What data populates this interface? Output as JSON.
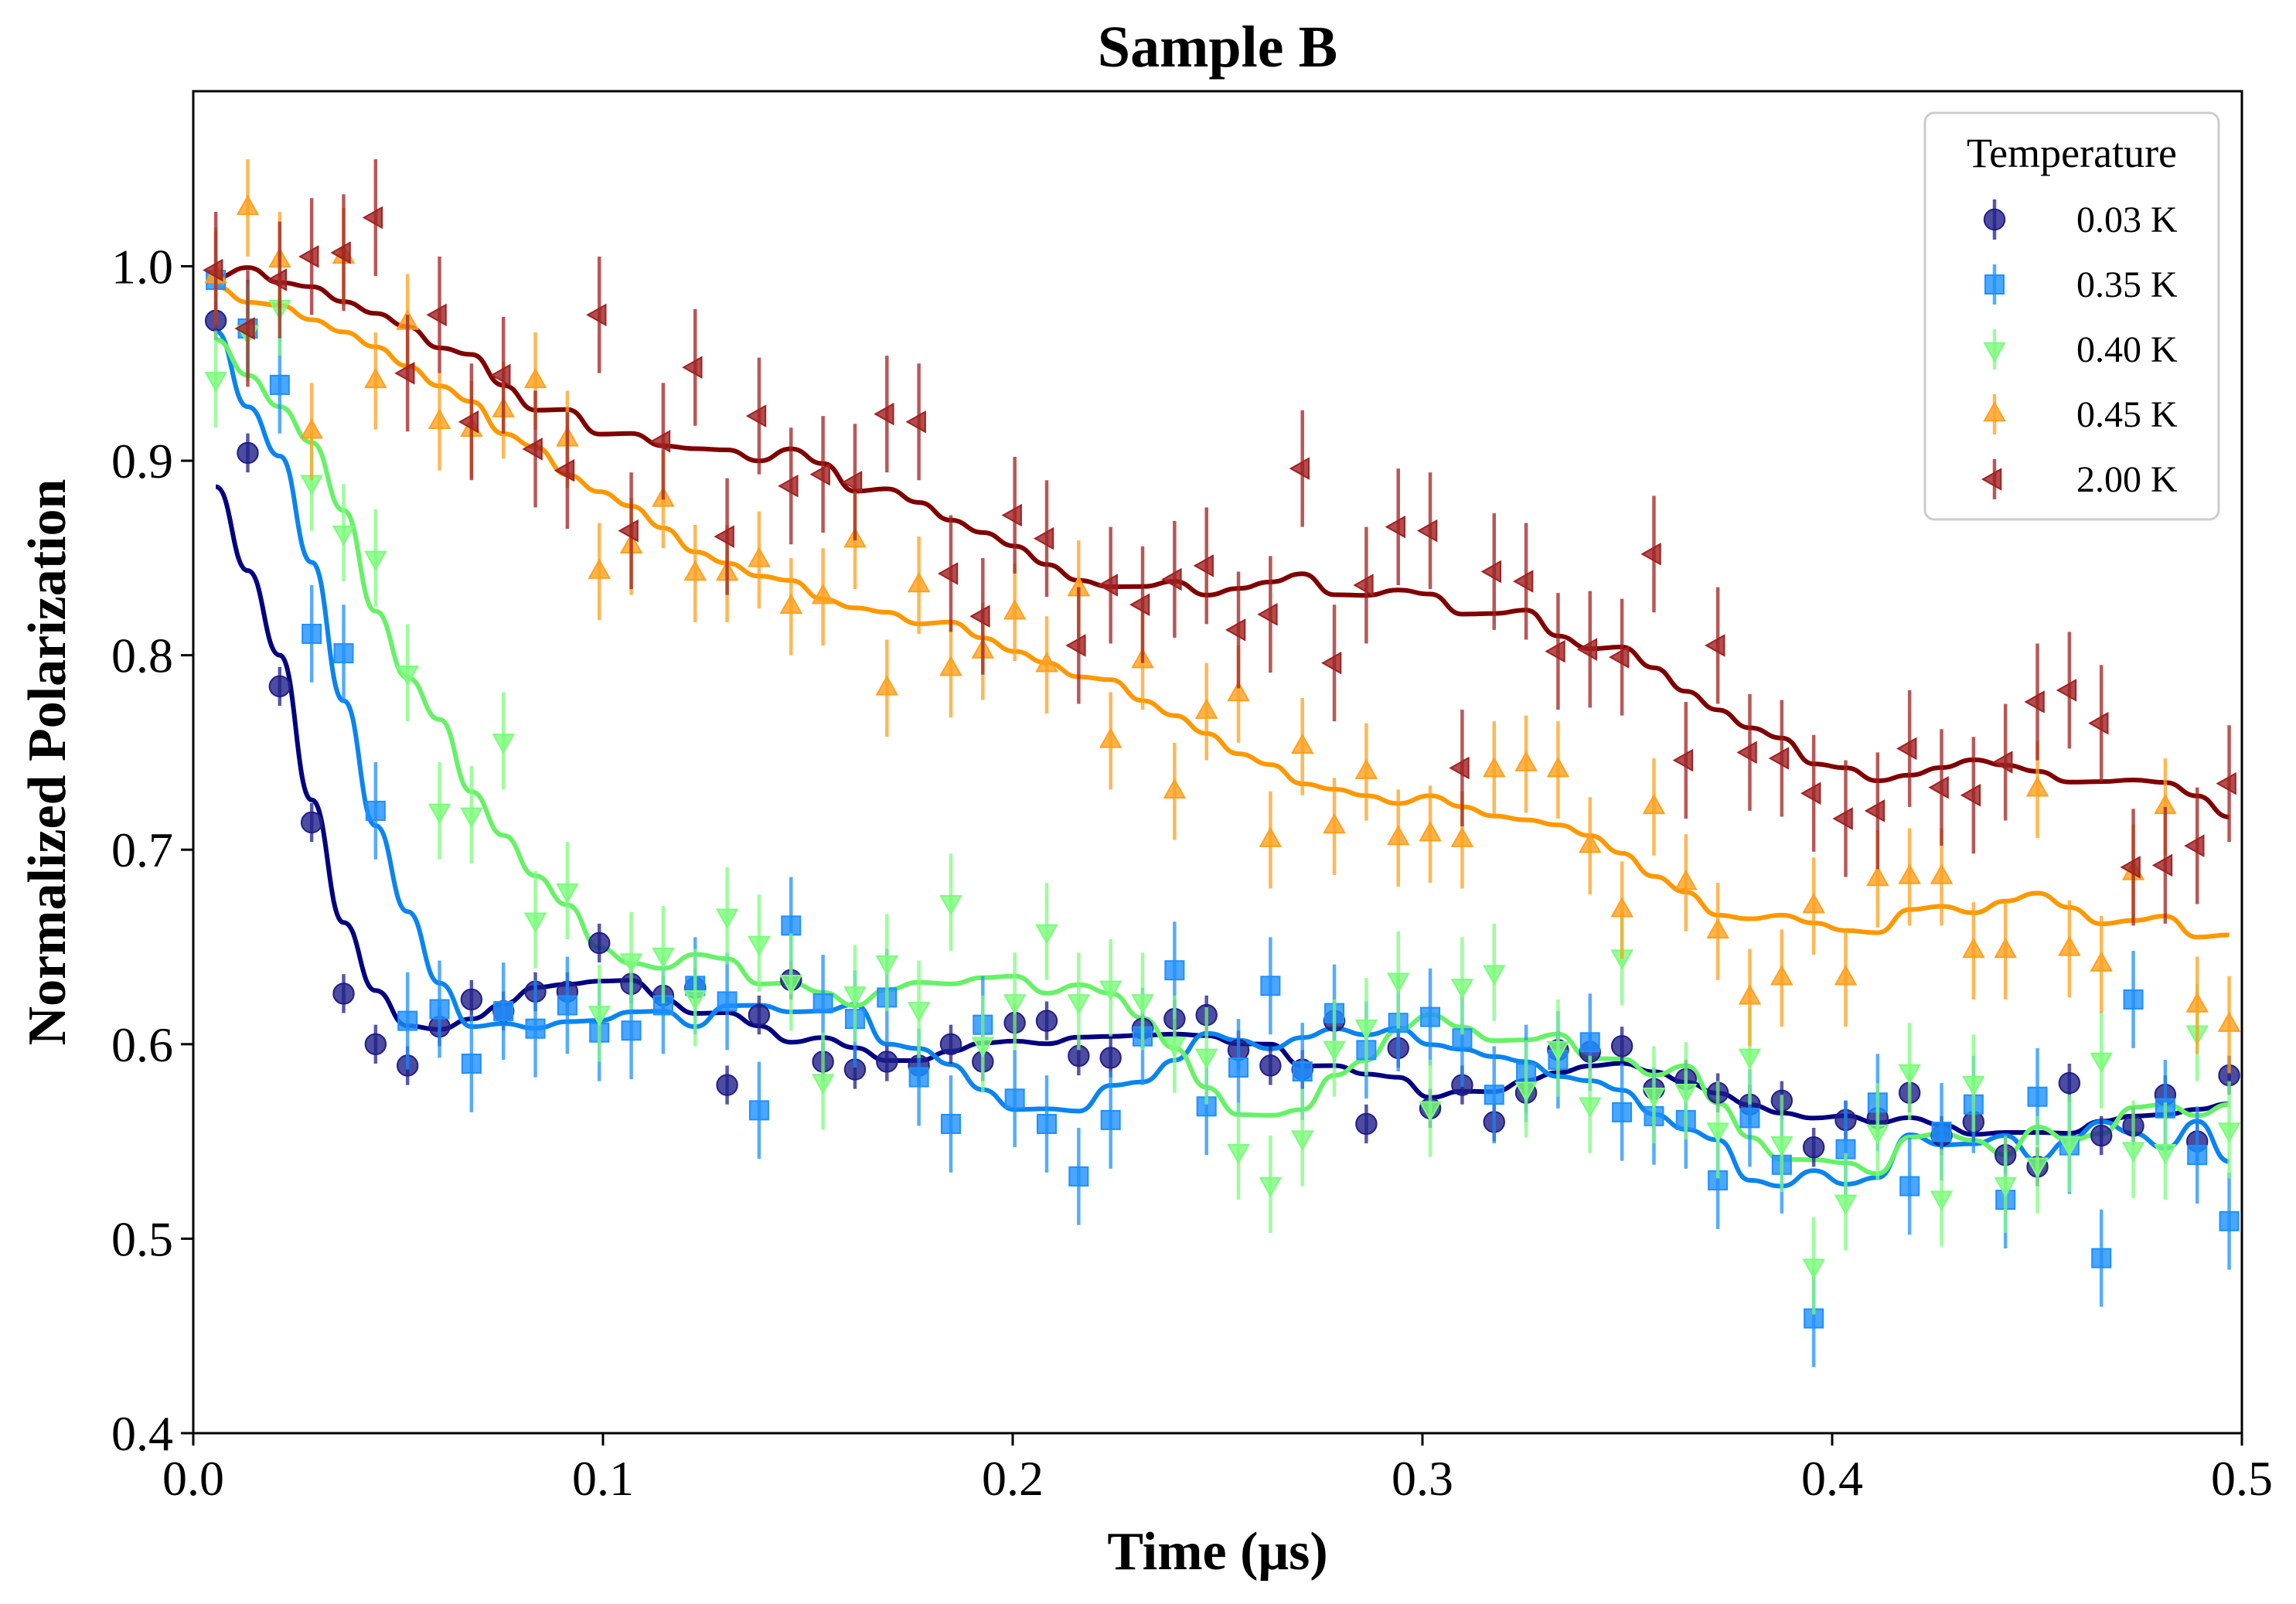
{
  "chart_data": {
    "type": "scatter",
    "title": "Sample B",
    "xlabel": "Time (μs)",
    "ylabel": "Normalized Polarization",
    "xlim": [
      0.0,
      0.5
    ],
    "ylim": [
      0.4,
      1.09
    ],
    "xticks": [
      0.0,
      0.1,
      0.2,
      0.3,
      0.4,
      0.5
    ],
    "xtick_labels": [
      "0.0",
      "0.1",
      "0.2",
      "0.3",
      "0.4",
      "0.5"
    ],
    "yticks": [
      0.4,
      0.5,
      0.6,
      0.7,
      0.8,
      0.9,
      1.0
    ],
    "ytick_labels": [
      "0.4",
      "0.5",
      "0.6",
      "0.7",
      "0.8",
      "0.9",
      "1.0"
    ],
    "grid": false,
    "legend": {
      "title": "Temperature",
      "position": "top-right"
    },
    "x": [
      0.0055,
      0.0133,
      0.0211,
      0.0289,
      0.0367,
      0.0445,
      0.0523,
      0.0601,
      0.0679,
      0.0757,
      0.0835,
      0.0913,
      0.0991,
      0.1069,
      0.1147,
      0.1225,
      0.1303,
      0.1381,
      0.1459,
      0.1537,
      0.1615,
      0.1693,
      0.1771,
      0.1849,
      0.1927,
      0.2005,
      0.2083,
      0.2161,
      0.2239,
      0.2317,
      0.2395,
      0.2473,
      0.2551,
      0.2629,
      0.2707,
      0.2785,
      0.2863,
      0.2941,
      0.3019,
      0.3097,
      0.3175,
      0.3253,
      0.3331,
      0.3409,
      0.3487,
      0.3565,
      0.3643,
      0.3721,
      0.3799,
      0.3877,
      0.3955,
      0.4033,
      0.4111,
      0.4189,
      0.4267,
      0.4345,
      0.4423,
      0.4501,
      0.4579,
      0.4657,
      0.4735,
      0.4813,
      0.4891,
      0.4969
    ],
    "series": [
      {
        "name": "0.03 K",
        "marker": "circle",
        "color": "#1f1f8a",
        "y": [
          0.972,
          0.904,
          0.784,
          0.714,
          0.626,
          0.6,
          0.589,
          0.609,
          0.623,
          0.617,
          0.627,
          0.627,
          0.652,
          0.631,
          0.625,
          0.629,
          0.579,
          0.615,
          0.633,
          0.591,
          0.587,
          0.591,
          0.589,
          0.6,
          0.591,
          0.611,
          0.612,
          0.594,
          0.593,
          0.608,
          0.613,
          0.615,
          0.597,
          0.589,
          0.587,
          0.612,
          0.559,
          0.598,
          0.567,
          0.579,
          0.56,
          0.575,
          0.597,
          0.596,
          0.599,
          0.577,
          0.582,
          0.575,
          0.569,
          0.571,
          0.547,
          0.561,
          0.562,
          0.575,
          0.553,
          0.56,
          0.543,
          0.537,
          0.58,
          0.553,
          0.558,
          0.574,
          0.55,
          0.584
        ],
        "err": 0.01
      },
      {
        "name": "0.35 K",
        "marker": "square",
        "color": "#1e90ff",
        "y": [
          0.993,
          0.968,
          0.939,
          0.811,
          0.801,
          0.72,
          0.612,
          0.618,
          0.59,
          0.617,
          0.608,
          0.62,
          0.606,
          0.607,
          0.62,
          0.63,
          0.622,
          0.566,
          0.661,
          0.621,
          0.613,
          0.624,
          0.583,
          0.559,
          0.61,
          0.572,
          0.559,
          0.532,
          0.561,
          0.604,
          0.638,
          0.568,
          0.588,
          0.63,
          0.586,
          0.616,
          0.597,
          0.611,
          0.614,
          0.603,
          0.574,
          0.585,
          0.592,
          0.601,
          0.565,
          0.563,
          0.561,
          0.53,
          0.562,
          0.538,
          0.459,
          0.546,
          0.57,
          0.527,
          0.555,
          0.569,
          0.52,
          0.573,
          0.548,
          0.49,
          0.623,
          0.567,
          0.543,
          0.509
        ],
        "err": 0.025
      },
      {
        "name": "0.40 K",
        "marker": "triangle-down",
        "color": "#7cfc7c",
        "y": [
          0.942,
          0.966,
          0.979,
          0.889,
          0.863,
          0.85,
          0.791,
          0.72,
          0.718,
          0.756,
          0.664,
          0.679,
          0.616,
          0.643,
          0.646,
          0.624,
          0.666,
          0.652,
          0.632,
          0.581,
          0.626,
          0.642,
          0.618,
          0.673,
          0.6,
          0.622,
          0.658,
          0.622,
          0.629,
          0.622,
          0.6,
          0.594,
          0.545,
          0.528,
          0.552,
          0.598,
          0.609,
          0.633,
          0.567,
          0.63,
          0.637,
          0.577,
          0.598,
          0.569,
          0.645,
          0.574,
          0.576,
          0.556,
          0.594,
          0.549,
          0.486,
          0.519,
          0.555,
          0.586,
          0.521,
          0.58,
          0.528,
          0.538,
          0.549,
          0.592,
          0.546,
          0.545,
          0.606,
          0.556
        ],
        "err": 0.025
      },
      {
        "name": "0.45 K",
        "marker": "triangle-up",
        "color": "#ffa01e",
        "y": [
          0.995,
          1.03,
          1.003,
          0.915,
          1.005,
          0.941,
          0.971,
          0.92,
          0.916,
          0.926,
          0.941,
          0.911,
          0.843,
          0.856,
          0.88,
          0.842,
          0.842,
          0.849,
          0.825,
          0.83,
          0.859,
          0.783,
          0.836,
          0.793,
          0.802,
          0.822,
          0.795,
          0.834,
          0.756,
          0.797,
          0.73,
          0.771,
          0.78,
          0.705,
          0.753,
          0.712,
          0.74,
          0.706,
          0.708,
          0.705,
          0.741,
          0.744,
          0.741,
          0.702,
          0.669,
          0.722,
          0.683,
          0.658,
          0.624,
          0.634,
          0.671,
          0.634,
          0.685,
          0.686,
          0.686,
          0.648,
          0.648,
          0.731,
          0.649,
          0.641,
          0.688,
          0.722,
          0.62,
          0.61
        ],
        "err": 0.025
      },
      {
        "name": "2.00 K",
        "marker": "triangle-left",
        "color": "#a02020",
        "y": [
          0.998,
          0.968,
          0.993,
          1.005,
          1.007,
          1.025,
          0.945,
          0.975,
          0.92,
          0.944,
          0.906,
          0.895,
          0.975,
          0.864,
          0.91,
          0.948,
          0.861,
          0.923,
          0.887,
          0.893,
          0.889,
          0.924,
          0.92,
          0.842,
          0.82,
          0.872,
          0.86,
          0.805,
          0.836,
          0.826,
          0.839,
          0.846,
          0.813,
          0.821,
          0.896,
          0.796,
          0.836,
          0.866,
          0.864,
          0.742,
          0.843,
          0.838,
          0.802,
          0.803,
          0.799,
          0.852,
          0.746,
          0.805,
          0.75,
          0.747,
          0.729,
          0.716,
          0.72,
          0.752,
          0.732,
          0.728,
          0.745,
          0.776,
          0.782,
          0.765,
          0.691,
          0.692,
          0.702,
          0.734
        ],
        "err": 0.03
      }
    ],
    "fit_curves": [
      {
        "name": "0.03 K",
        "color": "#000080"
      },
      {
        "name": "0.35 K",
        "color": "#0a84ef"
      },
      {
        "name": "0.40 K",
        "color": "#66f266"
      },
      {
        "name": "0.45 K",
        "color": "#ff9800"
      },
      {
        "name": "2.00 K",
        "color": "#800000"
      }
    ]
  }
}
